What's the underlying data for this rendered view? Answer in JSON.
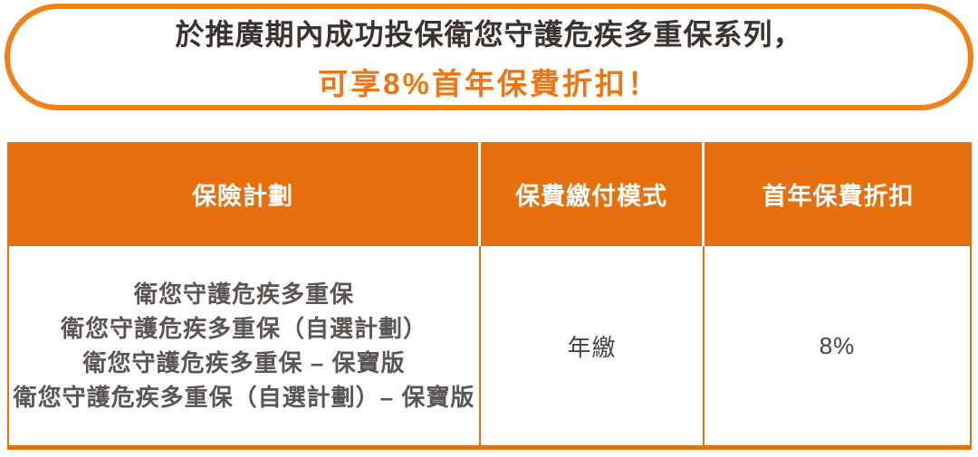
{
  "banner": {
    "line1": "於推廣期內成功投保衛您守護危疾多重保系列，",
    "line2": "可享8%首年保費折扣！"
  },
  "table": {
    "headers": [
      "保險計劃",
      "保費繳付模式",
      "首年保費折扣"
    ],
    "row": {
      "plans": [
        "衛您守護危疾多重保",
        "衛您守護危疾多重保（自選計劃）",
        "衛您守護危疾多重保 – 保寶版",
        "衛您守護危疾多重保（自選計劃）– 保寶版"
      ],
      "payment_mode": "年繳",
      "first_year_discount": "8%"
    }
  },
  "colors": {
    "table_orange": "#E76F0E",
    "banner_border_orange": "#F08119",
    "highlight_text_orange": "#EF7511",
    "headline_text": "#3A332F",
    "plan_text": "#5B5553",
    "value_text": "#4A4440",
    "header_text": "#FFFFFF"
  }
}
